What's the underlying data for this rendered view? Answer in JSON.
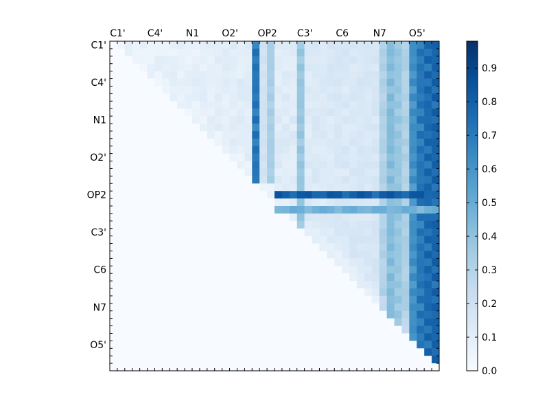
{
  "chart_data": {
    "type": "heatmap",
    "title": "",
    "xlabel": "",
    "ylabel": "",
    "colormap": "Blues",
    "colormap_stops": [
      "#f7fbff",
      "#deebf7",
      "#c6dbef",
      "#9ecae1",
      "#6baed6",
      "#4292c6",
      "#2171b5",
      "#08519c",
      "#08306b"
    ],
    "grid_size": 44,
    "matrix_shape": "upper-triangular",
    "x_tick_labels": [
      "C1'",
      "C4'",
      "N1",
      "O2'",
      "OP2",
      "C3'",
      "C6",
      "N7",
      "O5'"
    ],
    "y_tick_labels": [
      "C1'",
      "C4'",
      "N1",
      "O2'",
      "OP2",
      "C3'",
      "C6",
      "N7",
      "O5'"
    ],
    "label_positions": [
      0,
      5,
      10,
      15,
      20,
      25,
      30,
      35,
      40
    ],
    "colorbar": {
      "range": [
        0.0,
        0.98
      ],
      "ticks": [
        0.0,
        0.1,
        0.2,
        0.3,
        0.4,
        0.5,
        0.6,
        0.7,
        0.8,
        0.9
      ],
      "tick_labels": [
        "0.0",
        "0.1",
        "0.2",
        "0.3",
        "0.4",
        "0.5",
        "0.6",
        "0.7",
        "0.8",
        "0.9"
      ]
    },
    "row_profiles": [
      {
        "row": 20,
        "from_col": 22,
        "level": 0.85
      },
      {
        "row": 22,
        "from_col": 22,
        "level": 0.5
      }
    ],
    "column_profiles": [
      {
        "col": 19,
        "to_row": 18,
        "level": 0.75
      },
      {
        "col": 20,
        "to_row": 18,
        "level": 0.2
      },
      {
        "col": 21,
        "to_row": 18,
        "level": 0.35
      },
      {
        "col": 25,
        "to_row": 24,
        "level": 0.4
      },
      {
        "col": 37,
        "to_row": 36,
        "level": 0.45
      },
      {
        "col": 38,
        "to_row": 37,
        "level": 0.4
      },
      {
        "col": 40,
        "to_row": 39,
        "level": 0.65
      },
      {
        "col": 41,
        "to_row": 40,
        "level": 0.75
      },
      {
        "col": 42,
        "to_row": 41,
        "level": 0.8
      },
      {
        "col": 43,
        "to_row": 42,
        "level": 0.82
      }
    ]
  }
}
